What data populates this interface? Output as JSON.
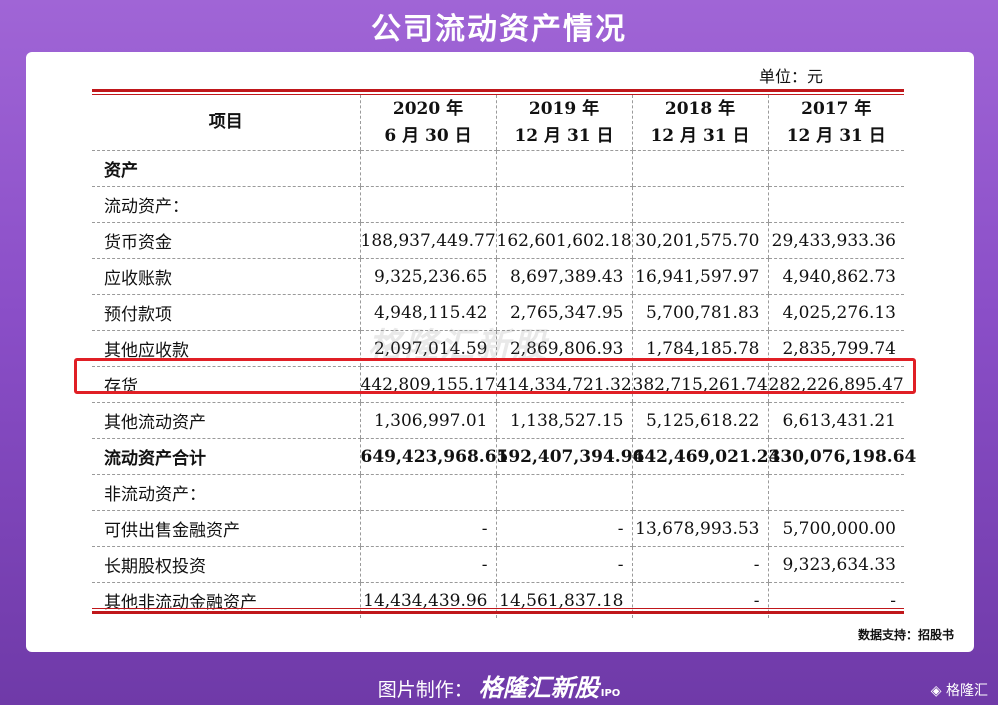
{
  "title": "公司流动资产情况",
  "unit": "单位：元",
  "table": {
    "header": {
      "item": "项目",
      "cols": [
        {
          "year": "2020 年",
          "date": "6 月 30 日"
        },
        {
          "year": "2019 年",
          "date": "12 月 31 日"
        },
        {
          "year": "2018 年",
          "date": "12 月 31 日"
        },
        {
          "year": "2017 年",
          "date": "12 月 31 日"
        }
      ]
    },
    "rows": [
      {
        "label": "资产",
        "values": [
          "",
          "",
          "",
          ""
        ],
        "bold": true
      },
      {
        "label": "流动资产：",
        "values": [
          "",
          "",
          "",
          ""
        ]
      },
      {
        "label": "货币资金",
        "values": [
          "188,937,449.77",
          "162,601,602.18",
          "30,201,575.70",
          "29,433,933.36"
        ]
      },
      {
        "label": "应收账款",
        "values": [
          "9,325,236.65",
          "8,697,389.43",
          "16,941,597.97",
          "4,940,862.73"
        ]
      },
      {
        "label": "预付款项",
        "values": [
          "4,948,115.42",
          "2,765,347.95",
          "5,700,781.83",
          "4,025,276.13"
        ]
      },
      {
        "label": "其他应收款",
        "values": [
          "2,097,014.59",
          "2,869,806.93",
          "1,784,185.78",
          "2,835,799.74"
        ]
      },
      {
        "label": "存货",
        "values": [
          "442,809,155.17",
          "414,334,721.32",
          "382,715,261.74",
          "282,226,895.47"
        ],
        "highlight": true
      },
      {
        "label": "其他流动资产",
        "values": [
          "1,306,997.01",
          "1,138,527.15",
          "5,125,618.22",
          "6,613,431.21"
        ]
      },
      {
        "label": "流动资产合计",
        "values": [
          "649,423,968.61",
          "592,407,394.96",
          "442,469,021.24",
          "330,076,198.64"
        ],
        "bold": true
      },
      {
        "label": "非流动资产：",
        "values": [
          "",
          "",
          "",
          ""
        ]
      },
      {
        "label": "可供出售金融资产",
        "values": [
          "-",
          "-",
          "13,678,993.53",
          "5,700,000.00"
        ]
      },
      {
        "label": "长期股权投资",
        "values": [
          "-",
          "-",
          "-",
          "9,323,634.33"
        ]
      },
      {
        "label": "其他非流动金融资产",
        "values": [
          "14,434,439.96",
          "14,561,837.18",
          "-",
          "-"
        ]
      }
    ]
  },
  "watermark": "格隆汇新股",
  "source": "数据支持：招股书",
  "footer": {
    "prefix": "图片制作：",
    "brand": "格隆汇新股",
    "suffix": "IPO"
  },
  "corner_logo": "格隆汇",
  "colors": {
    "accent_red": "#c0171b",
    "highlight_red": "#e01f25",
    "background_purple": "#8a4ec7"
  }
}
